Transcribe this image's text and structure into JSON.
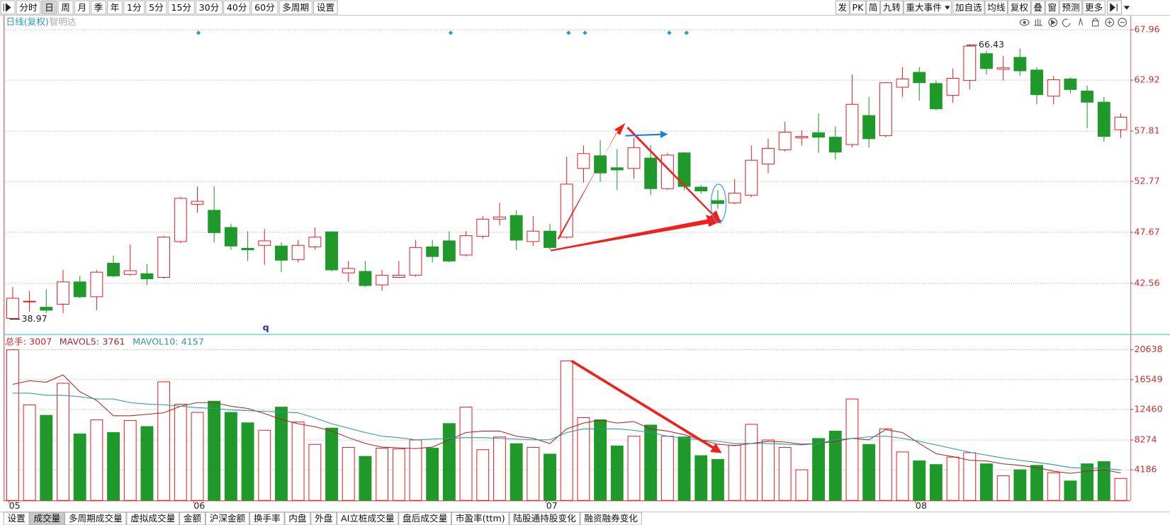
{
  "toolbar": {
    "left": [
      "分时",
      "日",
      "周",
      "月",
      "季",
      "年",
      "1分",
      "5分",
      "15分",
      "30分",
      "40分",
      "60分",
      "多周期",
      "设置"
    ],
    "right": [
      "发",
      "PK",
      "简",
      "九转",
      "重大事件",
      "加自选",
      "均线",
      "复权",
      "叠",
      "窗",
      "预测",
      "更多"
    ]
  },
  "tabs": [
    "设置",
    "成交量",
    "多周期成交量",
    "虚拟成交量",
    "金额",
    "沪深金额",
    "换手率",
    "内盘",
    "外盘",
    "AI立桩成交量",
    "盘后成交量",
    "市盈率(ttm)",
    "陆股通持股变化",
    "融资融券变化"
  ],
  "chart_data": [
    {
      "type": "candlestick",
      "title": "日线(复权)",
      "subtitle": "智明达",
      "annotations": [
        "q"
      ],
      "up_color": "#e8262a",
      "down_color": "#1f9a2a",
      "open": [
        39.05,
        40.7,
        40.17,
        40.47,
        42.71,
        41.22,
        44.58,
        43.46,
        43.53,
        43.16,
        46.75,
        50.48,
        49.88,
        48.16,
        46.07,
        46.37,
        46.3,
        44.95,
        46.22,
        47.72,
        43.61,
        43.76,
        42.41,
        43.16,
        43.38,
        46.22,
        46.82,
        45.4,
        47.27,
        48.99,
        49.36,
        46.75,
        47.79,
        47.19,
        54.07,
        55.34,
        54.14,
        54.07,
        55.11,
        52.05,
        55.63,
        52.2,
        50.85,
        50.63,
        51.38,
        54.51,
        55.93,
        57.13,
        57.65,
        57.2,
        56.46,
        59.37,
        57.35,
        62.21,
        63.7,
        62.58,
        61.39,
        62.88,
        65.57,
        64.0,
        65.2,
        63.93,
        61.31,
        63.03,
        61.83,
        60.71,
        57.95
      ],
      "high": [
        42.19,
        41.81,
        41.96,
        43.91,
        43.31,
        43.91,
        45.33,
        46.45,
        44.5,
        47.34,
        51.23,
        52.27,
        52.27,
        48.54,
        47.79,
        48.01,
        46.67,
        46.89,
        48.16,
        47.79,
        44.8,
        44.8,
        43.91,
        44.8,
        46.89,
        46.89,
        47.79,
        47.79,
        49.29,
        50.63,
        49.88,
        49.29,
        48.54,
        55.26,
        56.38,
        56.9,
        56.01,
        57.13,
        56.38,
        55.63,
        55.71,
        52.42,
        51.9,
        53.02,
        56.38,
        57.05,
        58.77,
        57.88,
        59.59,
        58.25,
        63.48,
        61.24,
        62.73,
        64.22,
        64.22,
        62.88,
        64.08,
        66.43,
        65.87,
        65.35,
        66.09,
        64.22,
        63.33,
        63.18,
        62.36,
        61.24,
        59.59
      ],
      "low": [
        38.97,
        39.72,
        39.57,
        39.57,
        41.07,
        39.87,
        43.16,
        43.31,
        42.41,
        43.01,
        46.6,
        49.66,
        46.67,
        45.92,
        44.8,
        44.43,
        43.68,
        44.65,
        45.92,
        43.76,
        42.71,
        42.19,
        41.81,
        43.09,
        43.23,
        44.65,
        44.65,
        45.25,
        47.04,
        48.39,
        45.92,
        46.3,
        45.9,
        47.04,
        52.65,
        52.72,
        51.9,
        53.02,
        51.38,
        51.9,
        51.9,
        51.53,
        50.03,
        50.48,
        51.23,
        53.62,
        55.78,
        56.38,
        55.63,
        54.96,
        56.16,
        56.16,
        57.2,
        61.24,
        60.86,
        59.89,
        60.64,
        61.98,
        63.48,
        62.88,
        63.33,
        60.49,
        60.49,
        61.61,
        58.1,
        56.74,
        57.13
      ],
      "close": [
        41.07,
        40.77,
        39.87,
        42.71,
        41.22,
        43.68,
        43.31,
        43.83,
        43.01,
        47.19,
        51.08,
        50.78,
        47.64,
        46.3,
        45.92,
        46.82,
        44.88,
        46.37,
        47.19,
        43.91,
        44.06,
        42.34,
        43.38,
        43.38,
        46.15,
        45.25,
        44.8,
        47.34,
        48.99,
        49.21,
        46.89,
        47.79,
        46.15,
        52.5,
        55.56,
        53.62,
        53.92,
        56.16,
        52.05,
        55.41,
        52.27,
        51.82,
        50.56,
        51.6,
        54.89,
        56.08,
        57.71,
        57.28,
        57.2,
        55.71,
        60.49,
        57.05,
        62.66,
        63.03,
        62.66,
        60.04,
        63.1,
        66.32,
        64.08,
        64.15,
        63.85,
        61.46,
        62.96,
        61.98,
        60.71,
        57.28,
        59.21
      ],
      "ylim": [
        37.48,
        69.45
      ],
      "yticks": [
        42.56,
        47.67,
        52.77,
        57.81,
        62.92,
        67.96
      ],
      "grid": true
    },
    {
      "type": "bar",
      "categories": [
        "05",
        null,
        null,
        null,
        null,
        null,
        null,
        null,
        null,
        null,
        null,
        "06",
        null,
        null,
        null,
        null,
        null,
        null,
        null,
        null,
        null,
        null,
        null,
        null,
        null,
        null,
        null,
        null,
        null,
        null,
        null,
        null,
        "07",
        null,
        null,
        null,
        null,
        null,
        null,
        null,
        null,
        null,
        null,
        null,
        null,
        null,
        null,
        null,
        null,
        null,
        null,
        null,
        null,
        null,
        "08",
        null,
        null,
        null,
        null,
        null,
        null,
        null,
        null,
        null,
        null,
        null,
        null
      ],
      "series": [
        {
          "name": "总手:",
          "type": "bar",
          "color": "#d02020",
          "values": [
            20638,
            13080,
            11650,
            16050,
            9100,
            11040,
            9300,
            10940,
            10120,
            16250,
            13180,
            12060,
            13590,
            12060,
            10630,
            9610,
            12780,
            10730,
            7670,
            9910,
            7260,
            6030,
            7150,
            7050,
            8280,
            7150,
            10530,
            12780,
            6950,
            8690,
            7770,
            7260,
            6340,
            19110,
            11340,
            11040,
            7460,
            8790,
            10320,
            8790,
            8690,
            6130,
            5620,
            7560,
            10420,
            8280,
            7260,
            4190,
            8480,
            9500,
            13900,
            7670,
            9810,
            6640,
            5420,
            4910,
            5930,
            6540,
            5010,
            3370,
            4190,
            4800,
            3780,
            2660,
            5010,
            5310,
            3007
          ]
        },
        {
          "name": "MAVOL5:",
          "type": "line",
          "color": "#a82828",
          "values": [
            15900,
            16400,
            16200,
            17200,
            14900,
            13700,
            11600,
            11600,
            11800,
            12000,
            12900,
            13400,
            13400,
            12900,
            12600,
            11900,
            11100,
            10500,
            10100,
            9500,
            8600,
            7800,
            7300,
            7200,
            7100,
            7300,
            8300,
            9300,
            9500,
            9500,
            8800,
            8500,
            7800,
            9800,
            10600,
            11000,
            10600,
            10800,
            9800,
            9500,
            9000,
            8300,
            7700,
            7500,
            7800,
            8100,
            8000,
            7700,
            7800,
            8100,
            8500,
            8300,
            9700,
            9300,
            7800,
            6400,
            6000,
            5500,
            5400,
            5000,
            4800,
            4500,
            4000,
            3700,
            4000,
            4200,
            3761
          ]
        },
        {
          "name": "MAVOL10:",
          "type": "line",
          "color": "#2a9a9a",
          "values": [
            14700,
            14700,
            14400,
            14400,
            14200,
            13900,
            13900,
            13400,
            13200,
            13100,
            12900,
            12700,
            12600,
            12400,
            12300,
            12200,
            12100,
            12000,
            11300,
            10500,
            9900,
            9300,
            8800,
            8600,
            8300,
            8400,
            8500,
            8600,
            8600,
            8500,
            8400,
            8300,
            8300,
            9300,
            9800,
            9800,
            9800,
            9600,
            9300,
            8800,
            8500,
            8300,
            8100,
            7800,
            7800,
            7800,
            7700,
            7600,
            7800,
            8300,
            8500,
            8700,
            8800,
            8500,
            8100,
            7600,
            7100,
            6600,
            6200,
            5800,
            5500,
            5200,
            4900,
            4500,
            4400,
            4400,
            4157
          ]
        }
      ],
      "ylim": [
        0,
        22380
      ],
      "yticks": [
        4186,
        8274,
        12460,
        16549,
        20638
      ],
      "grid": true
    }
  ]
}
